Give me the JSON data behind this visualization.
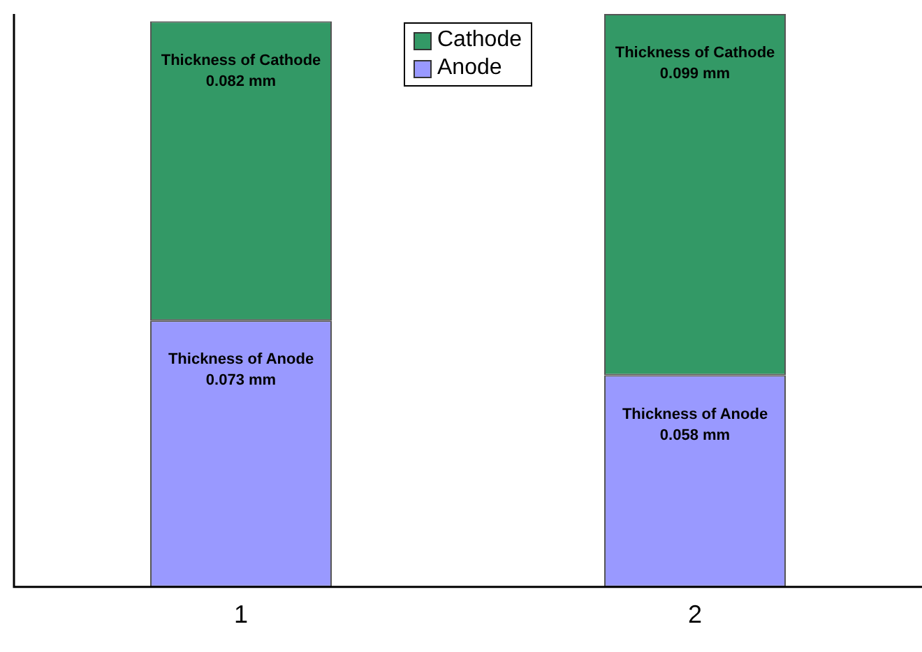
{
  "chart_data": {
    "type": "bar",
    "stacked": true,
    "categories": [
      "1",
      "2"
    ],
    "series": [
      {
        "name": "Anode",
        "color": "#9999ff",
        "values": [
          0.073,
          0.058
        ],
        "value_labels": [
          "Thickness of Anode 0.073 mm",
          "Thickness of Anode 0.058 mm"
        ]
      },
      {
        "name": "Cathode",
        "color": "#339966",
        "values": [
          0.082,
          0.099
        ],
        "value_labels": [
          "Thickness of Cathode 0.082 mm",
          "Thickness of Cathode 0.099 mm"
        ]
      }
    ],
    "tick_labels": "x",
    "legend": "top",
    "grid": false
  }
}
